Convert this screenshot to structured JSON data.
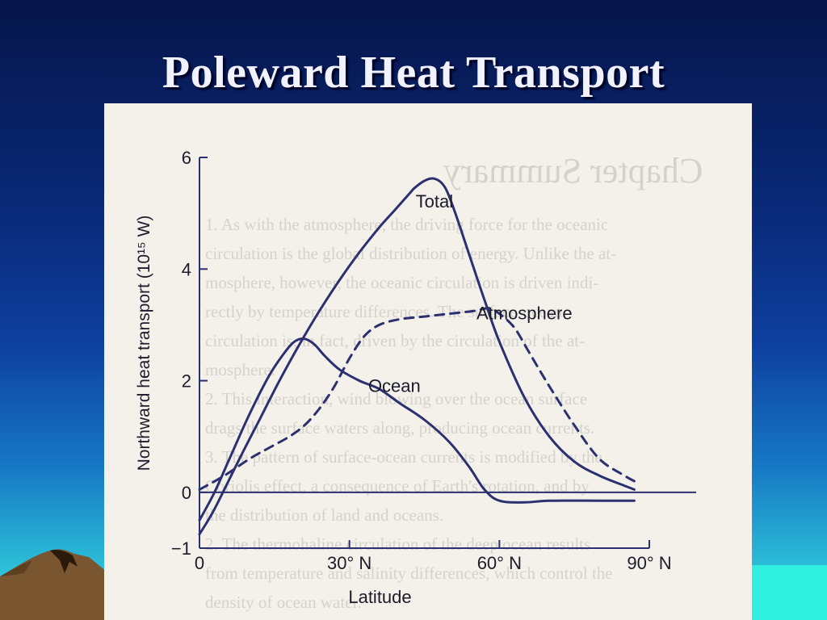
{
  "slide": {
    "title": "Poleward Heat Transport",
    "background_top": "#06154a",
    "background_bottom": "#45e6e0"
  },
  "chart_data": {
    "type": "line",
    "title": "",
    "xlabel": "Latitude",
    "ylabel": "Northward heat transport (10¹⁵ W)",
    "xlim": [
      0,
      90
    ],
    "ylim": [
      -1,
      6
    ],
    "x_ticks": [
      0,
      30,
      60,
      90
    ],
    "x_tick_labels": [
      "0",
      "30° N",
      "60° N",
      "90° N"
    ],
    "y_ticks": [
      -1,
      0,
      2,
      4,
      6
    ],
    "y_tick_labels": [
      "−1",
      "0",
      "2",
      "4",
      "6"
    ],
    "zero_line": true,
    "grid": false,
    "series": [
      {
        "name": "Total",
        "style": "solid",
        "x": [
          0,
          3,
          8,
          12,
          16,
          20,
          24,
          28,
          32,
          36,
          39,
          42,
          43,
          45,
          47,
          49,
          51,
          54,
          57,
          60,
          65,
          70,
          75,
          80,
          85,
          87
        ],
        "y": [
          -0.75,
          -0.3,
          0.6,
          1.3,
          2.0,
          2.65,
          3.25,
          3.8,
          4.3,
          4.75,
          5.05,
          5.35,
          5.45,
          5.58,
          5.62,
          5.48,
          5.05,
          4.25,
          3.45,
          2.7,
          1.7,
          1.0,
          0.55,
          0.3,
          0.12,
          0.05
        ]
      },
      {
        "name": "Atmosphere",
        "style": "dashed",
        "x": [
          0,
          5,
          10,
          14,
          18,
          21,
          24,
          27,
          30,
          33,
          36,
          40,
          45,
          50,
          55,
          58,
          60,
          63,
          66,
          70,
          75,
          80,
          85,
          87
        ],
        "y": [
          0.05,
          0.3,
          0.6,
          0.8,
          1.0,
          1.2,
          1.5,
          1.9,
          2.4,
          2.8,
          3.0,
          3.1,
          3.15,
          3.2,
          3.25,
          3.3,
          3.2,
          2.95,
          2.5,
          1.9,
          1.2,
          0.6,
          0.3,
          0.2
        ]
      },
      {
        "name": "Ocean",
        "style": "solid",
        "x": [
          0,
          3,
          6,
          10,
          14,
          17,
          19,
          21,
          23,
          25,
          28,
          32,
          36,
          40,
          45,
          50,
          54,
          57,
          60,
          65,
          70,
          80,
          87
        ],
        "y": [
          -0.5,
          0.0,
          0.6,
          1.4,
          2.1,
          2.5,
          2.7,
          2.75,
          2.65,
          2.45,
          2.2,
          2.0,
          1.85,
          1.6,
          1.3,
          0.9,
          0.45,
          0.05,
          -0.15,
          -0.18,
          -0.15,
          -0.15,
          -0.15
        ]
      }
    ],
    "annotations": [
      {
        "text": "Total",
        "x": 47,
        "y": 5.1
      },
      {
        "text": "Atmosphere",
        "x": 65,
        "y": 3.1
      },
      {
        "text": "Ocean",
        "x": 39,
        "y": 1.8
      }
    ],
    "line_color": "#2b3070"
  },
  "background_page_text": {
    "heading": "Chapter Summary",
    "lines": [
      "1. As with the atmosphere, the driving force for the oceanic",
      "circulation is the global distribution of energy. Unlike the at-",
      "mosphere, however, the oceanic circulation is driven indi-",
      "rectly by temperature differences. The surface-ocean",
      "circulation is, in fact, driven by the circulation of the at-",
      "mosphere.",
      "2. This interaction, wind blowing over the ocean surface",
      "drags the surface waters along, producing ocean currents.",
      "3. The pattern of surface-ocean currents is modified by the",
      "Coriolis effect, a consequence of Earth's rotation, and by",
      "the distribution of land and oceans.",
      "2. The thermohaline circulation of the deep ocean results",
      "from temperature and salinity differences, which control the",
      "density of ocean water."
    ]
  }
}
